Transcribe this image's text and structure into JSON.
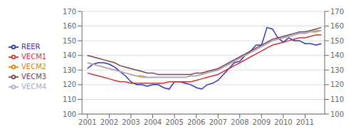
{
  "chart_data": {
    "type": "line",
    "title": "",
    "x": [
      2001,
      2001.25,
      2001.5,
      2001.75,
      2002,
      2002.25,
      2002.5,
      2002.75,
      2003,
      2003.25,
      2003.5,
      2003.75,
      2004,
      2004.25,
      2004.5,
      2004.75,
      2005,
      2005.25,
      2005.5,
      2005.75,
      2006,
      2006.25,
      2006.5,
      2006.75,
      2007,
      2007.25,
      2007.5,
      2007.75,
      2008,
      2008.25,
      2008.5,
      2008.75,
      2009,
      2009.25,
      2009.5,
      2009.75,
      2010,
      2010.25,
      2010.5,
      2010.75,
      2011,
      2011.25,
      2011.5,
      2011.75
    ],
    "series": [
      {
        "name": "REER",
        "color": "#3333bb",
        "values": [
          131,
          134,
          135,
          135,
          134,
          132,
          129,
          126,
          122,
          120,
          120,
          119,
          120,
          120,
          118,
          117,
          122,
          122,
          121,
          120,
          118,
          117,
          120,
          121,
          123,
          127,
          131,
          135,
          136,
          140,
          143,
          147,
          147,
          159,
          158,
          152,
          149,
          152,
          150,
          150,
          148,
          148,
          147,
          148
        ]
      },
      {
        "name": "VECM1",
        "color": "#cc3333",
        "values": [
          128,
          127,
          126,
          125,
          124,
          123,
          122,
          122,
          121,
          121,
          121,
          121,
          121,
          121,
          121,
          122,
          122,
          122,
          122,
          122,
          123,
          124,
          125,
          126,
          127,
          129,
          131,
          133,
          135,
          137,
          139,
          141,
          143,
          145,
          147,
          148,
          149,
          150,
          151,
          152,
          152,
          153,
          154,
          154
        ]
      },
      {
        "name": "VECM2",
        "color": "#dd8800",
        "values": [
          135,
          134,
          133,
          132,
          131,
          130,
          129,
          128,
          127,
          126,
          126,
          125,
          125,
          125,
          125,
          125,
          125,
          125,
          125,
          126,
          126,
          127,
          128,
          129,
          130,
          132,
          134,
          136,
          138,
          140,
          142,
          144,
          146,
          148,
          150,
          151,
          152,
          153,
          154,
          155,
          155,
          156,
          156,
          157
        ]
      },
      {
        "name": "VECM3",
        "color": "#774455",
        "values": [
          140,
          139,
          138,
          137,
          136,
          135,
          133,
          132,
          131,
          130,
          129,
          128,
          128,
          127,
          127,
          127,
          127,
          127,
          127,
          127,
          128,
          128,
          129,
          130,
          131,
          133,
          135,
          137,
          139,
          141,
          143,
          145,
          147,
          149,
          151,
          152,
          153,
          154,
          155,
          156,
          156,
          157,
          158,
          159
        ]
      },
      {
        "name": "VECM4",
        "color": "#aaaacc",
        "values": [
          135,
          134,
          133,
          132,
          131,
          130,
          129,
          128,
          127,
          126,
          125,
          125,
          125,
          125,
          125,
          125,
          125,
          125,
          125,
          126,
          126,
          127,
          128,
          129,
          130,
          132,
          134,
          136,
          138,
          140,
          142,
          144,
          146,
          148,
          150,
          151,
          152,
          153,
          154,
          155,
          155,
          156,
          157,
          157
        ]
      }
    ],
    "xlim": [
      2000.75,
      2011.9
    ],
    "xticks": [
      2001,
      2002,
      2003,
      2004,
      2005,
      2006,
      2007,
      2008,
      2009,
      2010,
      2011
    ],
    "ylim": [
      100,
      170
    ],
    "yticks": [
      100,
      110,
      120,
      130,
      140,
      150,
      160,
      170
    ],
    "y2lim": [
      100,
      170
    ],
    "y2ticks": [
      100,
      110,
      120,
      130,
      140,
      150,
      160,
      170
    ],
    "grid": "y",
    "legend": "left"
  }
}
